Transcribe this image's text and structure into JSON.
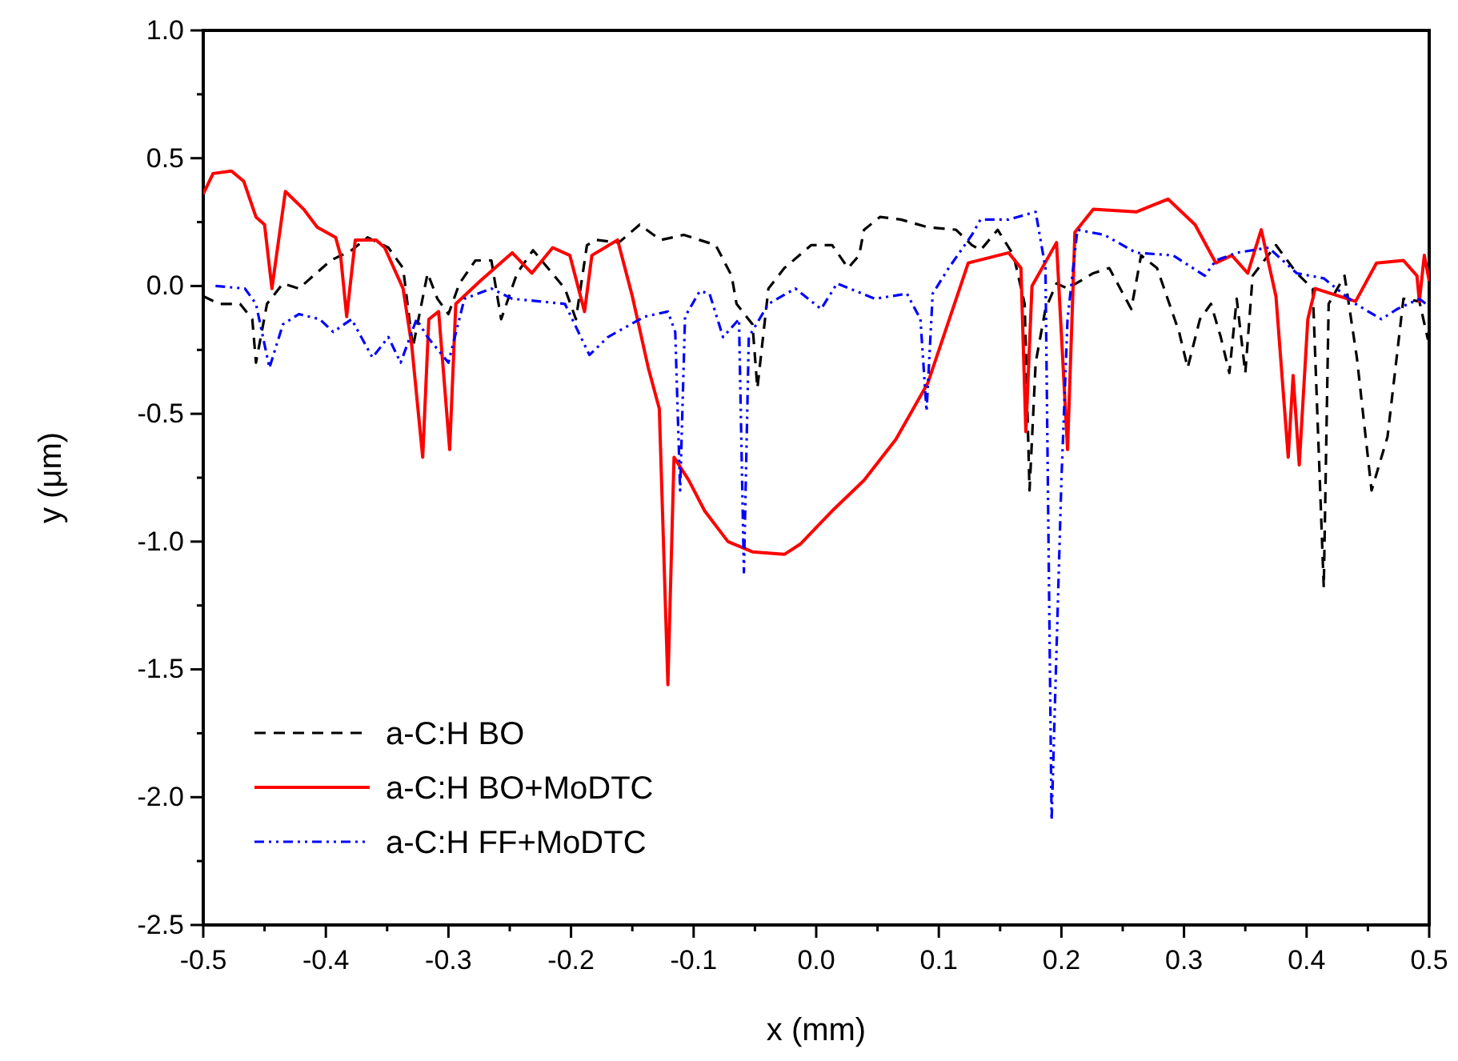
{
  "chart_data": {
    "type": "line",
    "xlabel": "x (mm)",
    "ylabel": "y (μm)",
    "xlim": [
      -0.5,
      0.5
    ],
    "ylim": [
      -2.5,
      1.0
    ],
    "xticks": [
      {
        "value": -0.5,
        "label": "-0.5"
      },
      {
        "value": -0.45,
        "label": null
      },
      {
        "value": -0.4,
        "label": "-0.4"
      },
      {
        "value": -0.35,
        "label": null
      },
      {
        "value": -0.3,
        "label": "-0.3"
      },
      {
        "value": -0.25,
        "label": null
      },
      {
        "value": -0.2,
        "label": "-0.2"
      },
      {
        "value": -0.15,
        "label": null
      },
      {
        "value": -0.1,
        "label": "-0.1"
      },
      {
        "value": -0.05,
        "label": null
      },
      {
        "value": 0,
        "label": "0.0"
      },
      {
        "value": 0.05,
        "label": null
      },
      {
        "value": 0.1,
        "label": "0.1"
      },
      {
        "value": 0.15,
        "label": null
      },
      {
        "value": 0.2,
        "label": "0.2"
      },
      {
        "value": 0.25,
        "label": null
      },
      {
        "value": 0.3,
        "label": "0.3"
      },
      {
        "value": 0.35,
        "label": null
      },
      {
        "value": 0.4,
        "label": "0.4"
      },
      {
        "value": 0.45,
        "label": null
      },
      {
        "value": 0.5,
        "label": "0.5"
      }
    ],
    "yticks": [
      {
        "value": -2.5,
        "label": "-2.5"
      },
      {
        "value": -2.25,
        "label": null
      },
      {
        "value": -2,
        "label": "-2.0"
      },
      {
        "value": -1.75,
        "label": null
      },
      {
        "value": -1.5,
        "label": "-1.5"
      },
      {
        "value": -1.25,
        "label": null
      },
      {
        "value": -1,
        "label": "-1.0"
      },
      {
        "value": -0.75,
        "label": null
      },
      {
        "value": -0.5,
        "label": "-0.5"
      },
      {
        "value": -0.25,
        "label": null
      },
      {
        "value": 0,
        "label": "0.0"
      },
      {
        "value": 0.25,
        "label": null
      },
      {
        "value": 0.5,
        "label": "0.5"
      },
      {
        "value": 0.75,
        "label": null
      },
      {
        "value": 1,
        "label": "1.0"
      }
    ],
    "grid": false,
    "legend": "bottom left",
    "marker": "none",
    "series": [
      {
        "name": "a-C:H BO",
        "color": "#000000",
        "line_style": "dashed",
        "x": [
          -0.5,
          -0.487,
          -0.47,
          -0.46,
          -0.457,
          -0.448,
          -0.435,
          -0.422,
          -0.396,
          -0.379,
          -0.366,
          -0.349,
          -0.337,
          -0.329,
          -0.317,
          -0.309,
          -0.3,
          -0.291,
          -0.278,
          -0.265,
          -0.257,
          -0.244,
          -0.231,
          -0.205,
          -0.196,
          -0.187,
          -0.179,
          -0.161,
          -0.144,
          -0.127,
          -0.108,
          -0.082,
          -0.069,
          -0.065,
          -0.052,
          -0.048,
          -0.039,
          -0.026,
          -0.004,
          0.013,
          0.026,
          0.035,
          0.039,
          0.052,
          0.069,
          0.091,
          0.114,
          0.127,
          0.134,
          0.148,
          0.161,
          0.17,
          0.174,
          0.179,
          0.187,
          0.196,
          0.205,
          0.226,
          0.239,
          0.257,
          0.265,
          0.278,
          0.296,
          0.303,
          0.313,
          0.322,
          0.33,
          0.337,
          0.343,
          0.35,
          0.356,
          0.375,
          0.392,
          0.405,
          0.414,
          0.418,
          0.431,
          0.441,
          0.453,
          0.466,
          0.479,
          0.492,
          0.499
        ],
        "values": [
          -0.04,
          -0.07,
          -0.07,
          -0.13,
          -0.3,
          -0.07,
          0.01,
          -0.01,
          0.1,
          0.14,
          0.19,
          0.15,
          0.07,
          -0.24,
          0.05,
          -0.05,
          -0.11,
          0.01,
          0.1,
          0.1,
          -0.13,
          0.05,
          0.14,
          -0.01,
          -0.13,
          0.16,
          0.18,
          0.17,
          0.24,
          0.18,
          0.2,
          0.16,
          0.04,
          -0.07,
          -0.15,
          -0.4,
          -0.01,
          0.07,
          0.16,
          0.16,
          0.07,
          0.12,
          0.22,
          0.27,
          0.26,
          0.23,
          0.22,
          0.16,
          0.14,
          0.22,
          0.12,
          -0.07,
          -0.8,
          -0.3,
          -0.09,
          0.01,
          -0.01,
          0.05,
          0.07,
          -0.09,
          0.12,
          0.07,
          -0.18,
          -0.32,
          -0.13,
          -0.07,
          -0.2,
          -0.34,
          -0.05,
          -0.34,
          0.04,
          0.16,
          0.05,
          -0.01,
          -1.18,
          -0.07,
          0.04,
          -0.28,
          -0.8,
          -0.59,
          -0.05,
          -0.06,
          -0.21
        ]
      },
      {
        "name": "a-C:H BO+MoDTC",
        "color": "#ff0000",
        "line_style": "solid",
        "x": [
          -0.5,
          -0.492,
          -0.477,
          -0.467,
          -0.457,
          -0.45,
          -0.444,
          -0.433,
          -0.418,
          -0.407,
          -0.392,
          -0.388,
          -0.383,
          -0.376,
          -0.359,
          -0.352,
          -0.337,
          -0.33,
          -0.321,
          -0.316,
          -0.308,
          -0.299,
          -0.294,
          -0.274,
          -0.248,
          -0.232,
          -0.215,
          -0.201,
          -0.189,
          -0.183,
          -0.162,
          -0.15,
          -0.137,
          -0.128,
          -0.121,
          -0.116,
          -0.104,
          -0.091,
          -0.072,
          -0.052,
          -0.026,
          -0.013,
          0.013,
          0.039,
          0.065,
          0.091,
          0.117,
          0.124,
          0.157,
          0.167,
          0.171,
          0.176,
          0.196,
          0.205,
          0.211,
          0.226,
          0.261,
          0.287,
          0.309,
          0.326,
          0.339,
          0.352,
          0.363,
          0.375,
          0.385,
          0.389,
          0.394,
          0.401,
          0.407,
          0.44,
          0.457,
          0.479,
          0.49,
          0.492,
          0.496,
          0.5
        ],
        "values": [
          0.36,
          0.44,
          0.45,
          0.41,
          0.27,
          0.24,
          -0.01,
          0.37,
          0.3,
          0.23,
          0.19,
          0.12,
          -0.12,
          0.18,
          0.18,
          0.15,
          -0.01,
          -0.23,
          -0.67,
          -0.13,
          -0.1,
          -0.64,
          -0.07,
          0.02,
          0.13,
          0.05,
          0.15,
          0.12,
          -0.1,
          0.12,
          0.18,
          -0.04,
          -0.32,
          -0.48,
          -1.56,
          -0.67,
          -0.76,
          -0.88,
          -1.0,
          -1.04,
          -1.05,
          -1.01,
          -0.88,
          -0.76,
          -0.6,
          -0.38,
          -0.01,
          0.09,
          0.13,
          0.07,
          -0.57,
          0.0,
          0.17,
          -0.64,
          0.21,
          0.3,
          0.29,
          0.34,
          0.24,
          0.09,
          0.12,
          0.05,
          0.22,
          -0.04,
          -0.67,
          -0.35,
          -0.7,
          -0.13,
          -0.01,
          -0.06,
          0.09,
          0.1,
          0.04,
          -0.06,
          0.12,
          0.02
        ]
      },
      {
        "name": "a-C:H FF+MoDTC",
        "color": "#0000ff",
        "line_style": "dashdotdot",
        "x": [
          -0.49,
          -0.466,
          -0.457,
          -0.446,
          -0.435,
          -0.422,
          -0.405,
          -0.394,
          -0.379,
          -0.362,
          -0.349,
          -0.339,
          -0.326,
          -0.317,
          -0.3,
          -0.287,
          -0.265,
          -0.248,
          -0.226,
          -0.205,
          -0.185,
          -0.17,
          -0.14,
          -0.121,
          -0.115,
          -0.111,
          -0.107,
          -0.095,
          -0.087,
          -0.076,
          -0.063,
          -0.059,
          -0.055,
          -0.039,
          -0.017,
          0.004,
          0.017,
          0.048,
          0.074,
          0.085,
          0.09,
          0.095,
          0.108,
          0.127,
          0.134,
          0.157,
          0.179,
          0.187,
          0.192,
          0.2,
          0.205,
          0.213,
          0.235,
          0.261,
          0.291,
          0.317,
          0.326,
          0.343,
          0.369,
          0.392,
          0.414,
          0.44,
          0.461,
          0.474,
          0.492,
          0.5
        ],
        "values": [
          0.0,
          -0.01,
          -0.07,
          -0.32,
          -0.15,
          -0.11,
          -0.13,
          -0.18,
          -0.13,
          -0.28,
          -0.2,
          -0.3,
          -0.13,
          -0.2,
          -0.3,
          -0.05,
          -0.01,
          -0.05,
          -0.06,
          -0.07,
          -0.27,
          -0.2,
          -0.12,
          -0.1,
          -0.18,
          -0.8,
          -0.12,
          -0.02,
          -0.03,
          -0.2,
          -0.13,
          -1.12,
          -0.2,
          -0.07,
          -0.01,
          -0.09,
          0.01,
          -0.05,
          -0.03,
          -0.13,
          -0.49,
          -0.03,
          0.07,
          0.2,
          0.26,
          0.26,
          0.29,
          0.07,
          -2.09,
          -0.76,
          -0.13,
          0.22,
          0.2,
          0.13,
          0.12,
          0.04,
          0.1,
          0.13,
          0.15,
          0.05,
          0.03,
          -0.07,
          -0.13,
          -0.09,
          -0.05,
          -0.08
        ]
      }
    ]
  }
}
